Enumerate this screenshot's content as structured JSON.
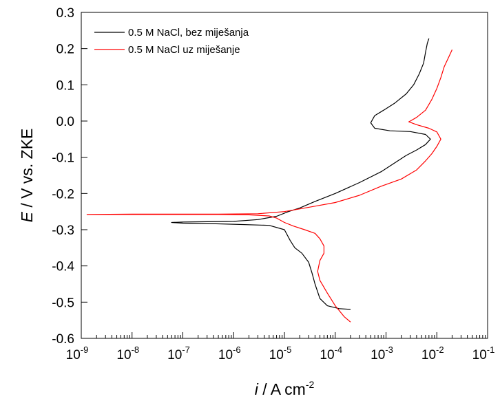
{
  "chart_data": {
    "type": "line",
    "title": "",
    "xlabel": {
      "italic": "i",
      "rest": " / A cm",
      "sup": "-2"
    },
    "ylabel": {
      "italic": "E",
      "rest": " / V vs. ZKE"
    },
    "xscale": "log",
    "xlim": [
      1e-09,
      0.1
    ],
    "ylim": [
      -0.6,
      0.3
    ],
    "grid": false,
    "legend_position": "top-left",
    "yticks": [
      {
        "v": 0.3,
        "label": "0.3"
      },
      {
        "v": 0.2,
        "label": "0.2"
      },
      {
        "v": 0.1,
        "label": "0.1"
      },
      {
        "v": 0.0,
        "label": "0.0"
      },
      {
        "v": -0.1,
        "label": "-0.1"
      },
      {
        "v": -0.2,
        "label": "-0.2"
      },
      {
        "v": -0.3,
        "label": "-0.3"
      },
      {
        "v": -0.4,
        "label": "-0.4"
      },
      {
        "v": -0.5,
        "label": "-0.5"
      },
      {
        "v": -0.6,
        "label": "-0.6"
      }
    ],
    "xticks": [
      {
        "exp": -9,
        "base": "10",
        "sup": "-9"
      },
      {
        "exp": -8,
        "base": "10",
        "sup": "-8"
      },
      {
        "exp": -7,
        "base": "10",
        "sup": "-7"
      },
      {
        "exp": -6,
        "base": "10",
        "sup": "-6"
      },
      {
        "exp": -5,
        "base": "10",
        "sup": "-5"
      },
      {
        "exp": -4,
        "base": "10",
        "sup": "-4"
      },
      {
        "exp": -3,
        "base": "10",
        "sup": "-3"
      },
      {
        "exp": -2,
        "base": "10",
        "sup": "-2"
      },
      {
        "exp": -1,
        "base": "10",
        "sup": "-1"
      }
    ],
    "series": [
      {
        "name": "0.5 M NaCl, bez miješanja",
        "color": "#000000",
        "points": [
          [
            0.0002,
            -0.52
          ],
          [
            0.00012,
            -0.518
          ],
          [
            7e-05,
            -0.51
          ],
          [
            5e-05,
            -0.49
          ],
          [
            4e-05,
            -0.45
          ],
          [
            3.5e-05,
            -0.42
          ],
          [
            3e-05,
            -0.39
          ],
          [
            2.2e-05,
            -0.365
          ],
          [
            1.6e-05,
            -0.35
          ],
          [
            1.3e-05,
            -0.33
          ],
          [
            1e-05,
            -0.3
          ],
          [
            5e-06,
            -0.288
          ],
          [
            1e-06,
            -0.285
          ],
          [
            3e-07,
            -0.283
          ],
          [
            1e-07,
            -0.282
          ],
          [
            6e-08,
            -0.28
          ],
          [
            1e-07,
            -0.279
          ],
          [
            3e-07,
            -0.278
          ],
          [
            1e-06,
            -0.277
          ],
          [
            3e-06,
            -0.272
          ],
          [
            7e-06,
            -0.263
          ],
          [
            1.2e-05,
            -0.25
          ],
          [
            2e-05,
            -0.24
          ],
          [
            4e-05,
            -0.222
          ],
          [
            0.0001,
            -0.2
          ],
          [
            0.0003,
            -0.17
          ],
          [
            0.0008,
            -0.14
          ],
          [
            0.0015,
            -0.115
          ],
          [
            0.0025,
            -0.095
          ],
          [
            0.004,
            -0.08
          ],
          [
            0.006,
            -0.065
          ],
          [
            0.0075,
            -0.05
          ],
          [
            0.006,
            -0.037
          ],
          [
            0.003,
            -0.029
          ],
          [
            0.0012,
            -0.027
          ],
          [
            0.0006,
            -0.02
          ],
          [
            0.0005,
            -0.005
          ],
          [
            0.0006,
            0.015
          ],
          [
            0.0009,
            0.03
          ],
          [
            0.0015,
            0.05
          ],
          [
            0.0025,
            0.075
          ],
          [
            0.0035,
            0.1
          ],
          [
            0.0045,
            0.13
          ],
          [
            0.0055,
            0.16
          ],
          [
            0.006,
            0.19
          ],
          [
            0.0065,
            0.215
          ],
          [
            0.007,
            0.228
          ]
        ]
      },
      {
        "name": "0.5 M NaCl uz miješanje",
        "color": "#ff0000",
        "points": [
          [
            0.0002,
            -0.555
          ],
          [
            0.00015,
            -0.54
          ],
          [
            0.0001,
            -0.51
          ],
          [
            7e-05,
            -0.475
          ],
          [
            5e-05,
            -0.44
          ],
          [
            4.5e-05,
            -0.415
          ],
          [
            5e-05,
            -0.385
          ],
          [
            6e-05,
            -0.365
          ],
          [
            6e-05,
            -0.345
          ],
          [
            5e-05,
            -0.325
          ],
          [
            4e-05,
            -0.31
          ],
          [
            2.5e-05,
            -0.3
          ],
          [
            1.5e-05,
            -0.29
          ],
          [
            1e-05,
            -0.28
          ],
          [
            7e-06,
            -0.268
          ],
          [
            5e-06,
            -0.262
          ],
          [
            2e-06,
            -0.259
          ],
          [
            5e-07,
            -0.258
          ],
          [
            1e-08,
            -0.258
          ],
          [
            1.3e-09,
            -0.258
          ],
          [
            1e-08,
            -0.257
          ],
          [
            5e-07,
            -0.257
          ],
          [
            3e-06,
            -0.256
          ],
          [
            1e-05,
            -0.25
          ],
          [
            4e-05,
            -0.235
          ],
          [
            0.0001,
            -0.225
          ],
          [
            0.0003,
            -0.205
          ],
          [
            0.0008,
            -0.18
          ],
          [
            0.002,
            -0.16
          ],
          [
            0.004,
            -0.135
          ],
          [
            0.006,
            -0.11
          ],
          [
            0.008,
            -0.09
          ],
          [
            0.01,
            -0.07
          ],
          [
            0.012,
            -0.05
          ],
          [
            0.01,
            -0.03
          ],
          [
            0.007,
            -0.02
          ],
          [
            0.004,
            -0.01
          ],
          [
            0.0028,
            -0.002
          ],
          [
            0.003,
            0.0
          ],
          [
            0.004,
            0.01
          ],
          [
            0.006,
            0.03
          ],
          [
            0.008,
            0.06
          ],
          [
            0.01,
            0.09
          ],
          [
            0.012,
            0.12
          ],
          [
            0.014,
            0.15
          ],
          [
            0.017,
            0.175
          ],
          [
            0.02,
            0.197
          ]
        ]
      }
    ]
  }
}
